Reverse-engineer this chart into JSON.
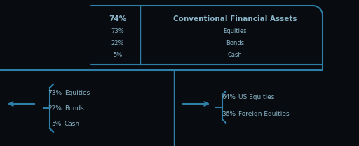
{
  "bg_color": "#080c10",
  "line_color": "#2e7fa8",
  "text_color": "#8ab4c8",
  "top_box": {
    "pct_main": "74%",
    "label_main": "Conventional Financial Assets",
    "rows": [
      {
        "pct": "73%",
        "label": "Equities"
      },
      {
        "pct": "22%",
        "label": "Bonds"
      },
      {
        "pct": "5%",
        "label": "Cash"
      }
    ]
  },
  "bottom_left": {
    "lines": [
      "73%  Equities",
      "22%  Bonds",
      "5%   Cash"
    ]
  },
  "bottom_right": {
    "lines": [
      "64%  US Equities",
      "36%  Foreign Equities"
    ]
  },
  "font_size": 6.5
}
